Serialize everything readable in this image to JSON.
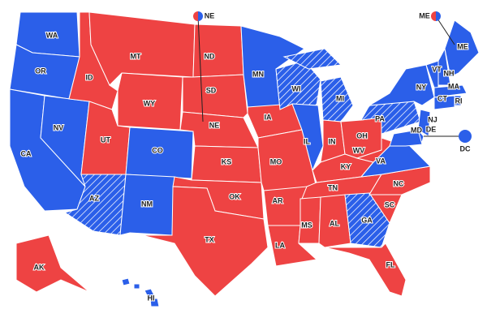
{
  "states": [
    {
      "label": "WA",
      "color": "#2b5fe9"
    },
    {
      "label": "OR",
      "color": "#2b5fe9"
    },
    {
      "label": "CA",
      "color": "#2b5fe9"
    },
    {
      "label": "NV",
      "color": "#2b5fe9"
    },
    {
      "label": "ID",
      "color": "#ee4343"
    },
    {
      "label": "MT",
      "color": "#ee4343"
    },
    {
      "label": "WY",
      "color": "#ee4343"
    },
    {
      "label": "UT",
      "color": "#ee4343"
    },
    {
      "label": "CO",
      "color": "#2b5fe9"
    },
    {
      "label": "AZ",
      "color": "#2b5fe9",
      "hatched": true
    },
    {
      "label": "NM",
      "color": "#2b5fe9"
    },
    {
      "label": "ND",
      "color": "#ee4343"
    },
    {
      "label": "SD",
      "color": "#ee4343"
    },
    {
      "label": "NE",
      "color": "#ee4343"
    },
    {
      "label": "KS",
      "color": "#ee4343"
    },
    {
      "label": "OK",
      "color": "#ee4343"
    },
    {
      "label": "TX",
      "color": "#ee4343"
    },
    {
      "label": "MN",
      "color": "#2b5fe9"
    },
    {
      "label": "IA",
      "color": "#ee4343"
    },
    {
      "label": "MO",
      "color": "#ee4343"
    },
    {
      "label": "AR",
      "color": "#ee4343"
    },
    {
      "label": "LA",
      "color": "#ee4343"
    },
    {
      "label": "WI",
      "color": "#2b5fe9",
      "hatched": true
    },
    {
      "label": "IL",
      "color": "#2b5fe9"
    },
    {
      "label": "MI",
      "color": "#2b5fe9",
      "hatched": true
    },
    {
      "label": "IN",
      "color": "#ee4343"
    },
    {
      "label": "OH",
      "color": "#ee4343"
    },
    {
      "label": "KY",
      "color": "#ee4343"
    },
    {
      "label": "TN",
      "color": "#ee4343"
    },
    {
      "label": "MS",
      "color": "#ee4343"
    },
    {
      "label": "AL",
      "color": "#ee4343"
    },
    {
      "label": "GA",
      "color": "#2b5fe9",
      "hatched": true
    },
    {
      "label": "FL",
      "color": "#ee4343"
    },
    {
      "label": "SC",
      "color": "#ee4343"
    },
    {
      "label": "NC",
      "color": "#ee4343"
    },
    {
      "label": "VA",
      "color": "#2b5fe9"
    },
    {
      "label": "WV",
      "color": "#ee4343"
    },
    {
      "label": "PA",
      "color": "#2b5fe9",
      "hatched": true
    },
    {
      "label": "NY",
      "color": "#2b5fe9"
    },
    {
      "label": "VT",
      "color": "#2b5fe9"
    },
    {
      "label": "NH",
      "color": "#2b5fe9"
    },
    {
      "label": "ME",
      "color": "#2b5fe9"
    },
    {
      "label": "MA",
      "color": "#2b5fe9"
    },
    {
      "label": "RI",
      "color": "#2b5fe9"
    },
    {
      "label": "CT",
      "color": "#2b5fe9"
    },
    {
      "label": "NJ",
      "color": "#2b5fe9"
    },
    {
      "label": "DE",
      "color": "#2b5fe9"
    },
    {
      "label": "MD",
      "color": "#2b5fe9"
    },
    {
      "label": "DC",
      "color": "#2b5fe9"
    },
    {
      "label": "AK",
      "color": "#ee4343"
    },
    {
      "label": "HI",
      "color": "#2b5fe9"
    }
  ],
  "split_markers": [
    {
      "label": "NE",
      "colors": [
        "#ee4343",
        "#2b5fe9"
      ]
    },
    {
      "label": "ME",
      "colors": [
        "#ee4343",
        "#2b5fe9"
      ]
    }
  ]
}
